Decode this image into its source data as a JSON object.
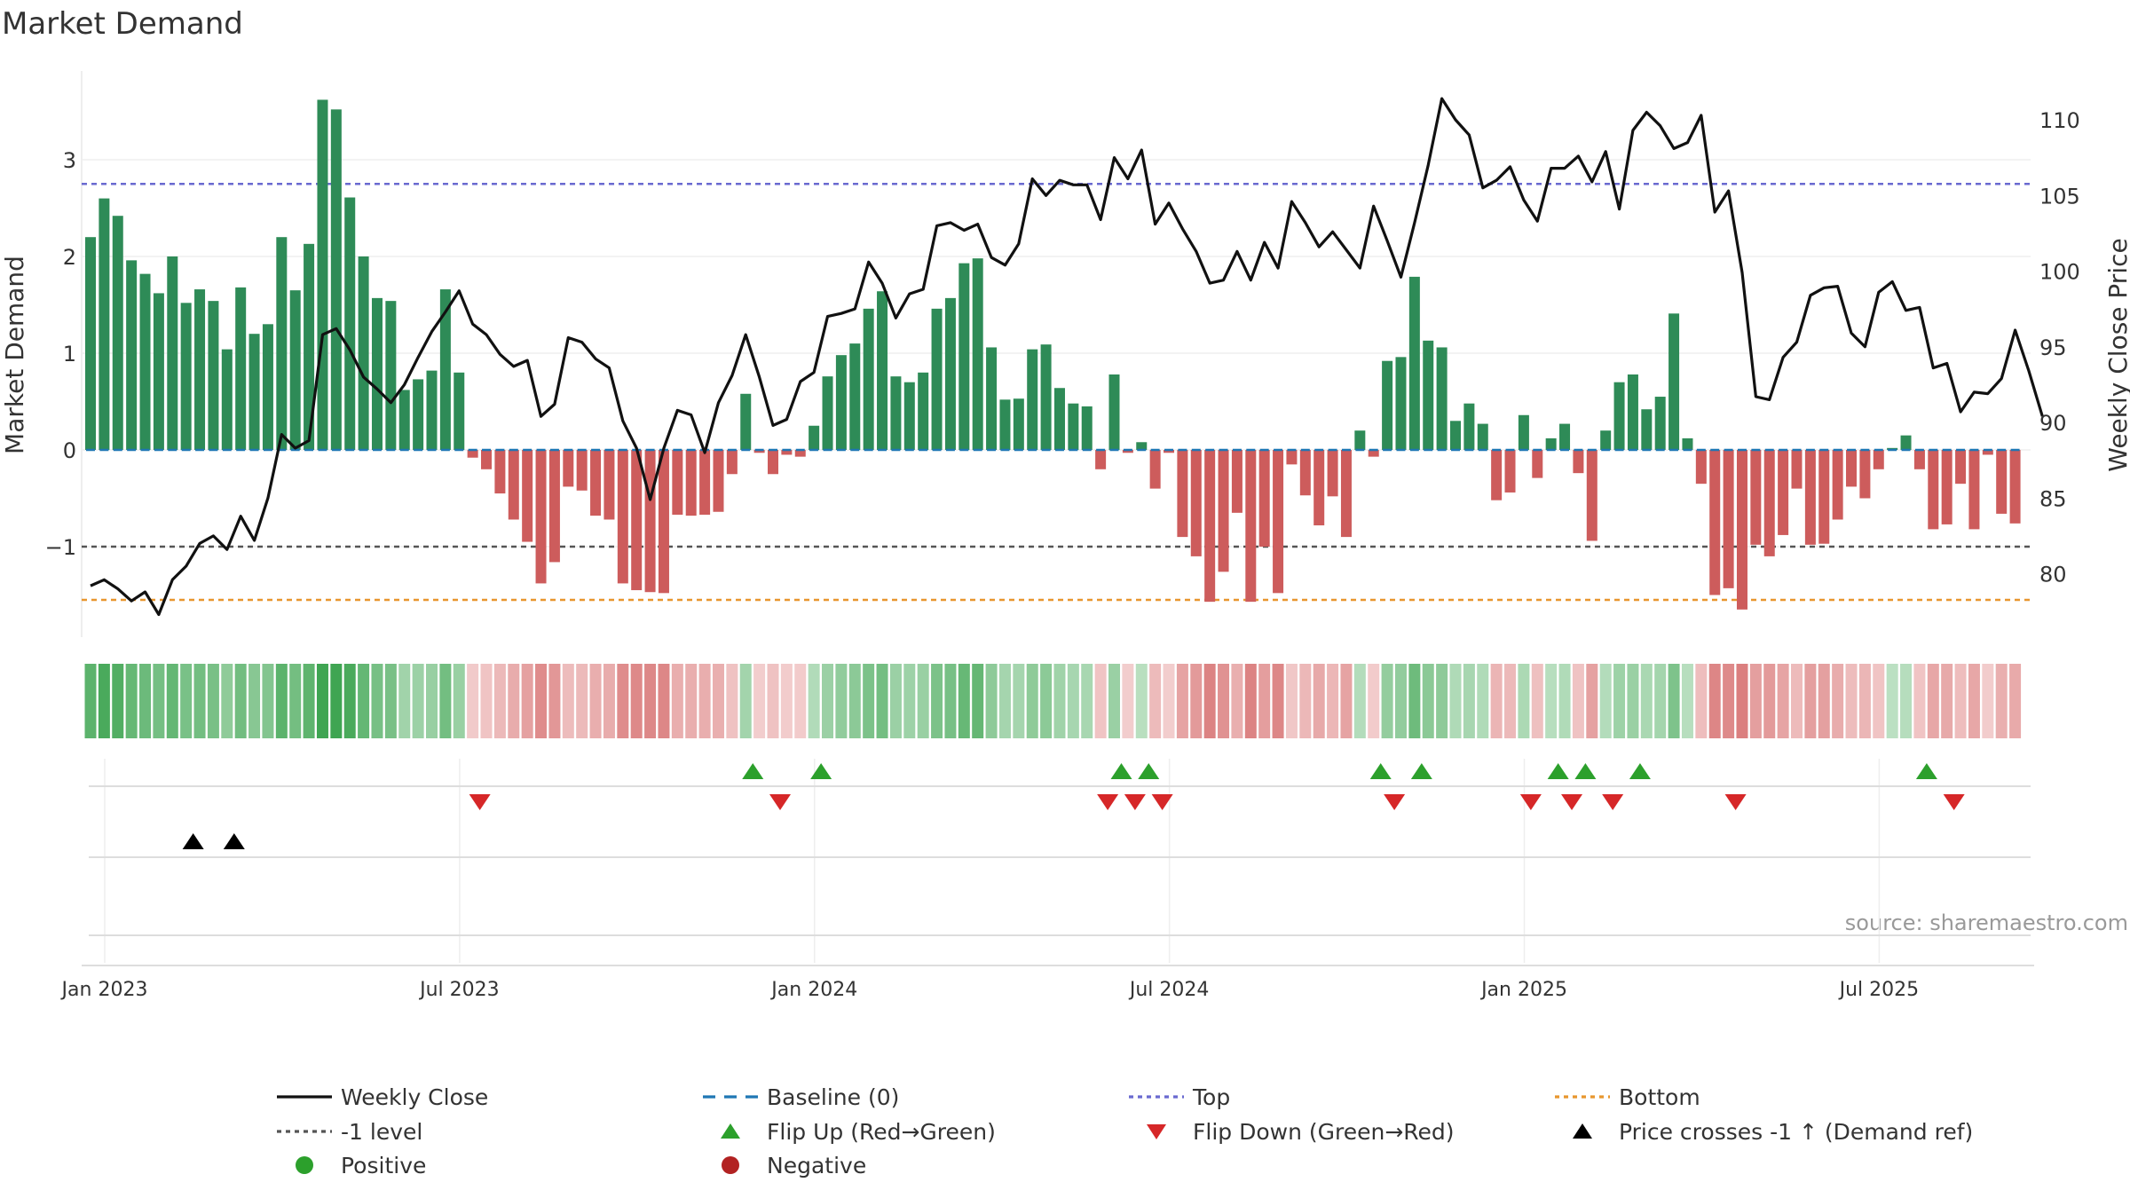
{
  "chart_data": {
    "type": "bar",
    "title": "Market Demand",
    "ylabel": "Market Demand",
    "y2label": "Weekly Close Price",
    "ylim": [
      -1.95,
      3.85
    ],
    "y2lim": [
      76.5,
      112.5
    ],
    "yticks": [
      "3",
      "2",
      "1",
      "0",
      "−1"
    ],
    "yticks_values": [
      3,
      2,
      1,
      0,
      -1
    ],
    "y2ticks": [
      "110",
      "105",
      "100",
      "95",
      "90",
      "85",
      "80"
    ],
    "y2ticks_values": [
      110,
      105,
      100,
      95,
      90,
      85,
      80
    ],
    "xticks": [
      "Jan 2023",
      "Jul 2023",
      "Jan 2024",
      "Jul 2024",
      "Jan 2025",
      "Jul 2025"
    ],
    "xticks_week_index": [
      0,
      26,
      52,
      78,
      104,
      130
    ],
    "reference_levels": {
      "top": 2.75,
      "minus_one": -1,
      "bottom": -1.55,
      "baseline": 0
    },
    "demand": [
      2.2,
      2.6,
      2.42,
      1.96,
      1.82,
      1.62,
      2.0,
      1.52,
      1.66,
      1.54,
      1.04,
      1.68,
      1.2,
      1.3,
      2.2,
      1.65,
      2.13,
      3.62,
      3.52,
      2.61,
      2.0,
      1.57,
      1.54,
      0.62,
      0.73,
      0.82,
      1.66,
      0.8,
      -0.08,
      -0.2,
      -0.45,
      -0.72,
      -0.95,
      -1.38,
      -1.16,
      -0.38,
      -0.42,
      -0.68,
      -0.72,
      -1.38,
      -1.45,
      -1.47,
      -1.48,
      -0.67,
      -0.68,
      -0.67,
      -0.64,
      -0.25,
      0.58,
      -0.03,
      -0.25,
      -0.05,
      -0.07,
      0.25,
      0.76,
      0.98,
      1.1,
      1.46,
      1.64,
      0.76,
      0.7,
      0.8,
      1.46,
      1.57,
      1.93,
      1.98,
      1.06,
      0.52,
      0.53,
      1.04,
      1.09,
      0.64,
      0.48,
      0.45,
      -0.2,
      0.78,
      -0.03,
      0.08,
      -0.4,
      -0.03,
      -0.9,
      -1.1,
      -1.57,
      -1.26,
      -0.65,
      -1.57,
      -1.0,
      -1.48,
      -0.15,
      -0.47,
      -0.78,
      -0.48,
      -0.9,
      0.2,
      -0.07,
      0.92,
      0.96,
      1.79,
      1.13,
      1.06,
      0.3,
      0.48,
      0.27,
      -0.52,
      -0.44,
      0.36,
      -0.29,
      0.12,
      0.27,
      -0.24,
      -0.94,
      0.2,
      0.7,
      0.78,
      0.42,
      0.55,
      1.41,
      0.12,
      -0.35,
      -1.5,
      -1.43,
      -1.65,
      -0.98,
      -1.1,
      -0.88,
      -0.4,
      -0.98,
      -0.97,
      -0.72,
      -0.38,
      -0.5,
      -0.2,
      0.02,
      0.15,
      -0.2,
      -0.82,
      -0.77,
      -0.35,
      -0.82,
      -0.05,
      -0.66,
      -0.76
    ],
    "price": [
      79.2,
      79.6,
      79.0,
      78.2,
      78.8,
      77.3,
      79.6,
      80.5,
      82.0,
      82.5,
      81.6,
      83.8,
      82.2,
      85.0,
      89.2,
      88.3,
      88.8,
      95.8,
      96.2,
      94.8,
      93.0,
      92.2,
      91.3,
      92.5,
      94.3,
      96.0,
      97.3,
      98.7,
      96.5,
      95.8,
      94.5,
      93.7,
      94.1,
      90.4,
      91.2,
      95.6,
      95.3,
      94.2,
      93.6,
      90.1,
      88.3,
      84.9,
      88.3,
      90.8,
      90.5,
      88.0,
      91.3,
      93.1,
      95.8,
      93.0,
      89.8,
      90.2,
      92.7,
      93.3,
      97.0,
      97.2,
      97.5,
      100.6,
      99.2,
      96.9,
      98.5,
      98.8,
      103.0,
      103.2,
      102.7,
      103.1,
      100.9,
      100.4,
      101.8,
      106.1,
      105.0,
      106.0,
      105.7,
      105.7,
      103.4,
      107.5,
      106.1,
      108.0,
      103.1,
      104.5,
      102.8,
      101.3,
      99.2,
      99.4,
      101.3,
      99.4,
      101.9,
      100.2,
      104.6,
      103.2,
      101.6,
      102.6,
      101.4,
      100.2,
      104.3,
      102.0,
      99.6,
      103.2,
      107.0,
      111.4,
      110.0,
      109.0,
      105.5,
      106.0,
      106.9,
      104.7,
      103.3,
      106.8,
      106.8,
      107.6,
      105.9,
      107.9,
      104.1,
      109.3,
      110.5,
      109.6,
      108.1,
      108.5,
      110.3,
      103.9,
      105.3,
      99.9,
      91.7,
      91.5,
      94.3,
      95.3,
      98.4,
      98.9,
      99.0,
      95.9,
      95.0,
      98.6,
      99.3,
      97.4,
      97.6,
      93.6,
      93.9,
      90.7,
      92.0,
      91.9,
      92.9,
      96.1,
      93.4,
      90.4
    ],
    "flip_up_week_index": [
      48,
      53,
      75,
      77,
      94,
      97,
      107,
      109,
      113,
      134
    ],
    "flip_down_week_index": [
      28,
      50,
      74,
      76,
      78,
      95,
      105,
      108,
      111,
      120,
      136
    ],
    "price_cross_week_index": [
      7,
      10
    ],
    "legend": [
      "Weekly Close",
      "Baseline (0)",
      "Top",
      "Bottom",
      "-1 level",
      "Flip Up (Red→Green)",
      "Flip Down (Green→Red)",
      "Price crosses -1 ↑ (Demand ref)",
      "Positive",
      "Negative"
    ],
    "source": "source: sharemaestro.com",
    "colors": {
      "positive_bar": "#2e8b57",
      "negative_bar": "#cd5c5c",
      "price_line": "#111111",
      "baseline": "#1f77b4",
      "top": "#6a6ad0",
      "minus_one": "#555555",
      "bottom": "#e8962e",
      "flip_up": "#2ca02c",
      "flip_down": "#d62728",
      "cross": "#000000",
      "positive_dot": "#2ca02c",
      "negative_dot": "#b22222"
    }
  }
}
